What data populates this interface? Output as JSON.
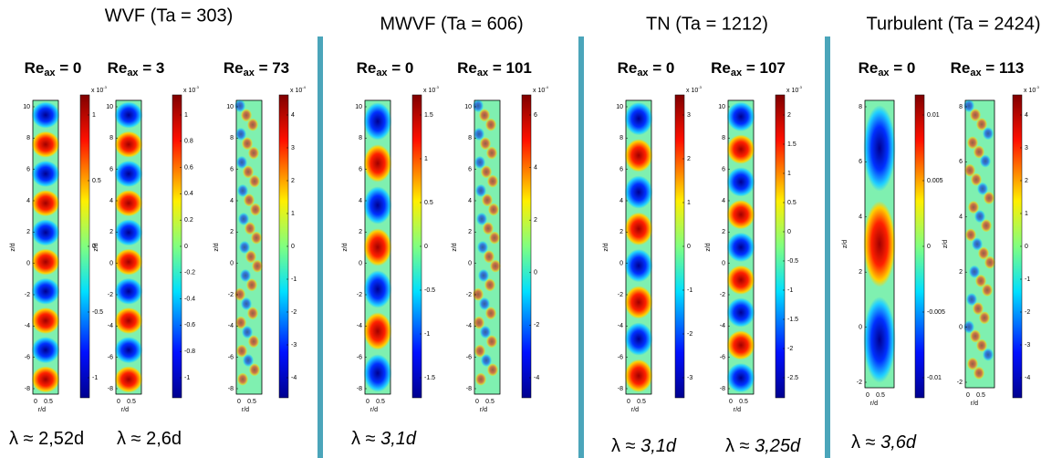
{
  "groups": [
    {
      "title": "WVF (Ta = 303)",
      "panels": [
        {
          "label": "Re",
          "label_sub": "ax",
          "label_rest": " = 0",
          "yticks": [
            "10",
            "8",
            "6",
            "4",
            "2",
            "0",
            "-2",
            "-4",
            "-6",
            "-8"
          ],
          "cbar_scale": "x 10",
          "cbar_exp": "-3",
          "cbar_ticks": [
            "1",
            "0.5",
            "0",
            "-0.5",
            "-1"
          ]
        },
        {
          "label": "Re",
          "label_sub": "ax",
          "label_rest": " = 3",
          "yticks": [
            "10",
            "8",
            "6",
            "4",
            "2",
            "0",
            "-2",
            "-4",
            "-6",
            "-8"
          ],
          "cbar_scale": "x 10",
          "cbar_exp": "-3",
          "cbar_ticks": [
            "1",
            "0.8",
            "0.6",
            "0.4",
            "0.2",
            "0",
            "-0.2",
            "-0.4",
            "-0.6",
            "-0.8",
            "-1"
          ]
        },
        {
          "label": "Re",
          "label_sub": "ax",
          "label_rest": " = 73",
          "yticks": [
            "10",
            "8",
            "6",
            "4",
            "2",
            "0",
            "-2",
            "-4",
            "-6",
            "-8"
          ],
          "cbar_scale": "x 10",
          "cbar_exp": "-4",
          "cbar_ticks": [
            "4",
            "3",
            "2",
            "1",
            "0",
            "-1",
            "-2",
            "-3",
            "-4"
          ]
        }
      ],
      "lambdas": [
        {
          "text": "λ ≈ 2,52d"
        },
        {
          "text": "λ ≈ 2,6d"
        }
      ]
    },
    {
      "title": "MWVF (Ta = 606)",
      "panels": [
        {
          "label": "Re",
          "label_sub": "ax",
          "label_rest": " = 0",
          "yticks": [
            "10",
            "8",
            "6",
            "4",
            "2",
            "0",
            "-2",
            "-4",
            "-6",
            "-8"
          ],
          "cbar_scale": "x 10",
          "cbar_exp": "-3",
          "cbar_ticks": [
            "1.5",
            "1",
            "0.5",
            "0",
            "-0.5",
            "-1",
            "-1.5"
          ]
        },
        {
          "label": "Re",
          "label_sub": "ax",
          "label_rest": " = 101",
          "yticks": [
            "10",
            "8",
            "6",
            "4",
            "2",
            "0",
            "-2",
            "-4",
            "-6",
            "-8"
          ],
          "cbar_scale": "x 10",
          "cbar_exp": "-4",
          "cbar_ticks": [
            "6",
            "4",
            "2",
            "0",
            "-2",
            "-4"
          ]
        }
      ],
      "lambdas": [
        {
          "text": "λ ≈ ",
          "italic": "3,1d"
        }
      ]
    },
    {
      "title": "TN (Ta = 1212)",
      "panels": [
        {
          "label": "Re",
          "label_sub": "ax",
          "label_rest": " = 0",
          "yticks": [
            "10",
            "8",
            "6",
            "4",
            "2",
            "0",
            "-2",
            "-4",
            "-6",
            "-8"
          ],
          "cbar_scale": "x 10",
          "cbar_exp": "-3",
          "cbar_ticks": [
            "3",
            "2",
            "1",
            "0",
            "-1",
            "-2",
            "-3"
          ]
        },
        {
          "label": "Re",
          "label_sub": "ax",
          "label_rest": " = 107",
          "yticks": [
            "10",
            "8",
            "6",
            "4",
            "2",
            "0",
            "-2",
            "-4",
            "-6",
            "-8"
          ],
          "cbar_scale": "x 10",
          "cbar_exp": "-3",
          "cbar_ticks": [
            "2",
            "1.5",
            "1",
            "0.5",
            "0",
            "-0.5",
            "-1",
            "-1.5",
            "-2",
            "-2.5"
          ]
        }
      ],
      "lambdas": [
        {
          "text": "λ ≈ ",
          "italic": "3,1d"
        },
        {
          "text": "λ ≈ ",
          "italic": "3,25d"
        }
      ]
    },
    {
      "title": "Turbulent (Ta = 2424)",
      "panels": [
        {
          "label": "Re",
          "label_sub": "ax",
          "label_rest": " = 0",
          "yticks": [
            "8",
            "6",
            "4",
            "2",
            "0",
            "-2"
          ],
          "cbar_ticks": [
            "0.01",
            "0.005",
            "0",
            "-0.005",
            "-0.01"
          ]
        },
        {
          "label": "Re",
          "label_sub": "ax",
          "label_rest": " = 113",
          "yticks": [
            "8",
            "6",
            "4",
            "2",
            "0",
            "-2"
          ],
          "cbar_scale": "x 10",
          "cbar_exp": "-3",
          "cbar_ticks": [
            "4",
            "3",
            "2",
            "1",
            "0",
            "-1",
            "-2",
            "-3",
            "-4"
          ]
        }
      ],
      "lambdas": [
        {
          "text": "λ ≈ ",
          "italic": "3,6d"
        }
      ]
    }
  ],
  "axis": {
    "ylabel": "z/d",
    "xlabel": "r/d",
    "xticks": [
      "0",
      "0.5"
    ]
  }
}
